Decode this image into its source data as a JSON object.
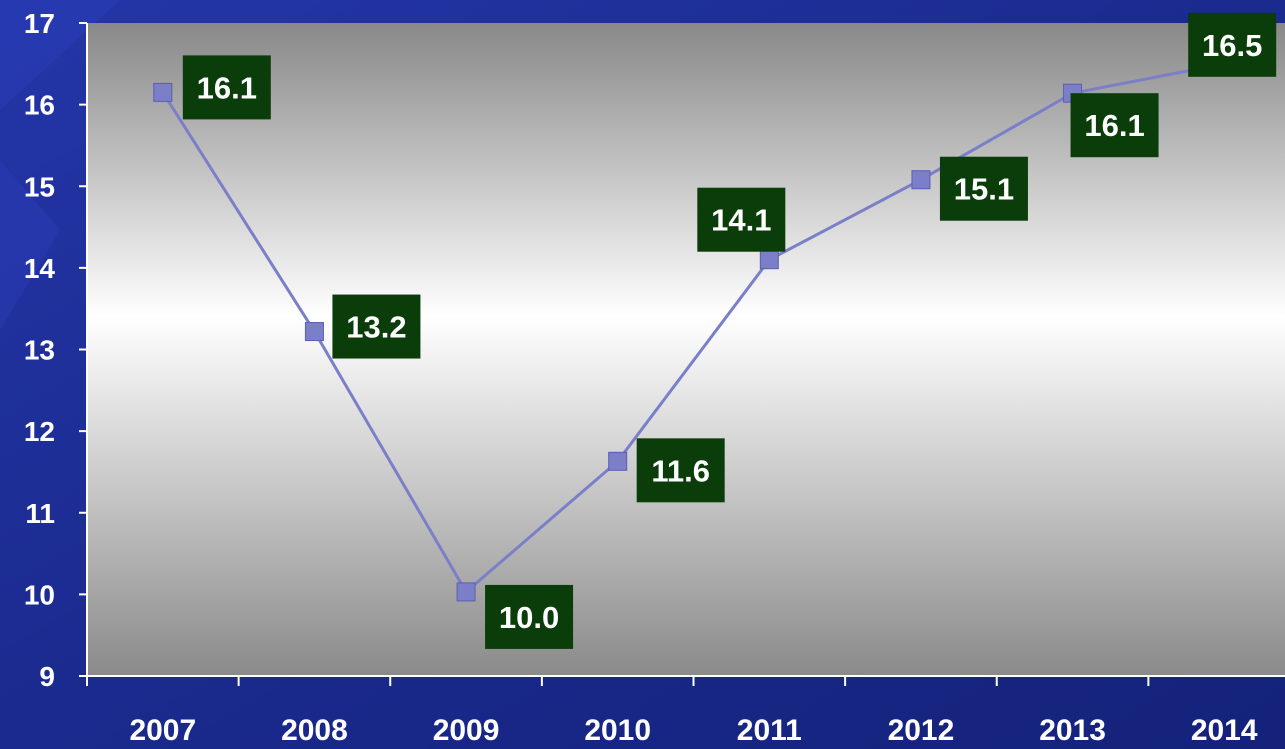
{
  "chart_data": {
    "type": "line",
    "title": "",
    "xlabel": "",
    "ylabel": "",
    "categories": [
      "2007",
      "2008",
      "2009",
      "2010",
      "2011",
      "2012",
      "2013",
      "2014"
    ],
    "ylim": [
      9,
      17
    ],
    "y_ticks": [
      "9",
      "10",
      "11",
      "12",
      "13",
      "14",
      "15",
      "16",
      "17"
    ],
    "series": [
      {
        "values": [
          16.15,
          13.22,
          10.03,
          11.63,
          14.1,
          15.08,
          16.14,
          16.5
        ],
        "labels": [
          "16.1",
          "13.2",
          "10.0",
          "11.6",
          "14.1",
          "15.1",
          "16.1",
          "16.5"
        ]
      }
    ],
    "grid": false,
    "legend": "none",
    "colors": {
      "background": "#1b2a8c",
      "line": "#7a7fc8",
      "marker": "#7a7fc8",
      "label_box": "#0b3d0b",
      "text": "#ffffff"
    }
  }
}
